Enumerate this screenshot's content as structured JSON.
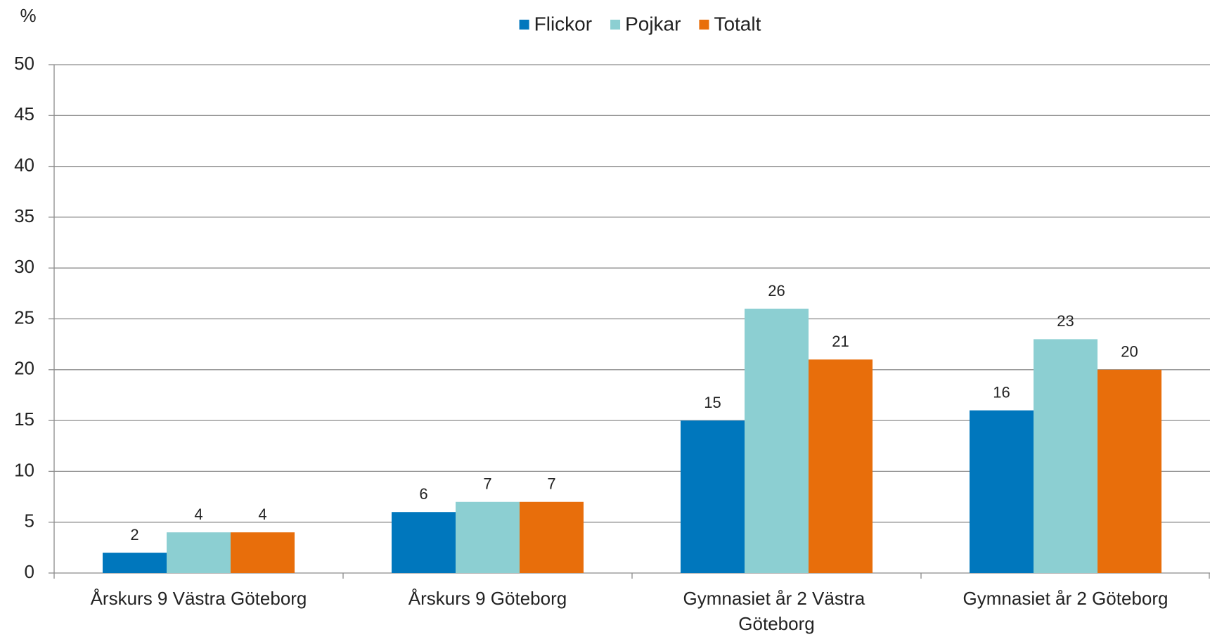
{
  "chart_data": {
    "type": "bar",
    "y_axis_label": "%",
    "categories": [
      "Årskurs 9 Västra Göteborg",
      "Årskurs 9 Göteborg",
      "Gymnasiet år 2 Västra Göteborg",
      "Gymnasiet år 2 Göteborg"
    ],
    "series": [
      {
        "name": "Flickor",
        "color": "#0077bd",
        "values": [
          2,
          6,
          15,
          16
        ]
      },
      {
        "name": "Pojkar",
        "color": "#8ccfd2",
        "values": [
          4,
          7,
          26,
          23
        ]
      },
      {
        "name": "Totalt",
        "color": "#e86e0b",
        "values": [
          4,
          7,
          21,
          20
        ]
      }
    ],
    "ylim": [
      0,
      50
    ],
    "yticks": [
      0,
      5,
      10,
      15,
      20,
      25,
      30,
      35,
      40,
      45,
      50
    ],
    "grid": true,
    "legend": "top"
  }
}
